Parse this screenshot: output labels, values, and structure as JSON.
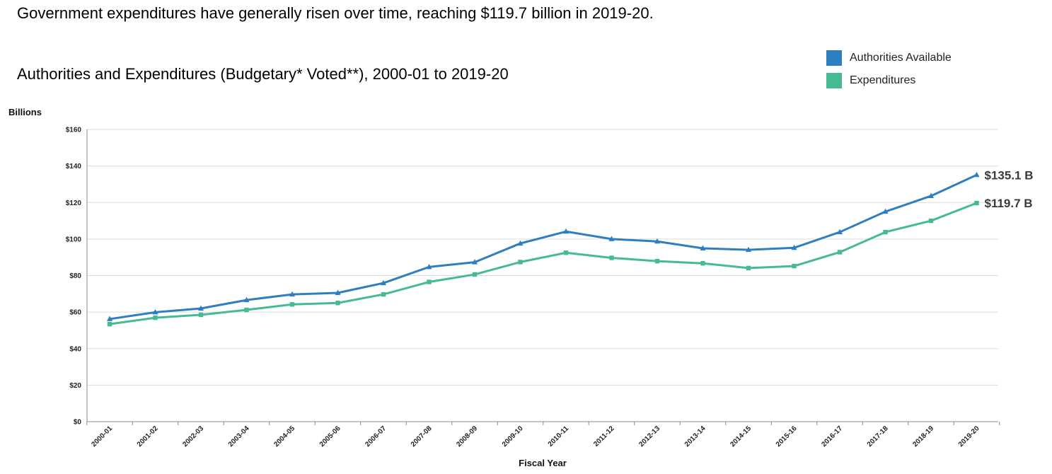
{
  "headline": "Government expenditures have generally risen over time, reaching $119.7 billion in 2019-20.",
  "chart_data": {
    "type": "line",
    "title": "Authorities and Expenditures (Budgetary* Voted**), 2000-01 to 2019-20",
    "ylabel": "Billions",
    "xlabel": "Fiscal Year",
    "ylim": [
      0,
      160
    ],
    "yticks": [
      0,
      20,
      40,
      60,
      80,
      100,
      120,
      140,
      160
    ],
    "ytick_labels": [
      "$0",
      "$20",
      "$40",
      "$60",
      "$80",
      "$100",
      "$120",
      "$140",
      "$160"
    ],
    "grid": true,
    "legend_position": "top-right",
    "categories": [
      "2000-01",
      "2001-02",
      "2002-03",
      "2003-04",
      "2004-05",
      "2005-06",
      "2006-07",
      "2007-08",
      "2008-09",
      "2009-10",
      "2010-11",
      "2011-12",
      "2012-13",
      "2013-14",
      "2014-15",
      "2015-16",
      "2016-17",
      "2017-18",
      "2018-19",
      "2019-20"
    ],
    "series": [
      {
        "name": "Authorities Available",
        "color": "#2e7fc1",
        "marker": "triangle",
        "values": [
          56.2,
          59.9,
          62.0,
          66.6,
          69.7,
          70.5,
          75.9,
          84.7,
          87.3,
          97.6,
          104.1,
          100.0,
          98.7,
          94.9,
          94.1,
          95.2,
          103.8,
          115.0,
          123.6,
          135.1
        ],
        "end_label": "$135.1 B"
      },
      {
        "name": "Expenditures",
        "color": "#46bb93",
        "marker": "square",
        "values": [
          53.4,
          56.9,
          58.5,
          61.2,
          64.2,
          65.0,
          69.7,
          76.5,
          80.6,
          87.4,
          92.5,
          89.7,
          87.9,
          86.7,
          84.1,
          85.2,
          92.8,
          103.8,
          110.0,
          119.7
        ],
        "end_label": "$119.7 B"
      }
    ]
  }
}
